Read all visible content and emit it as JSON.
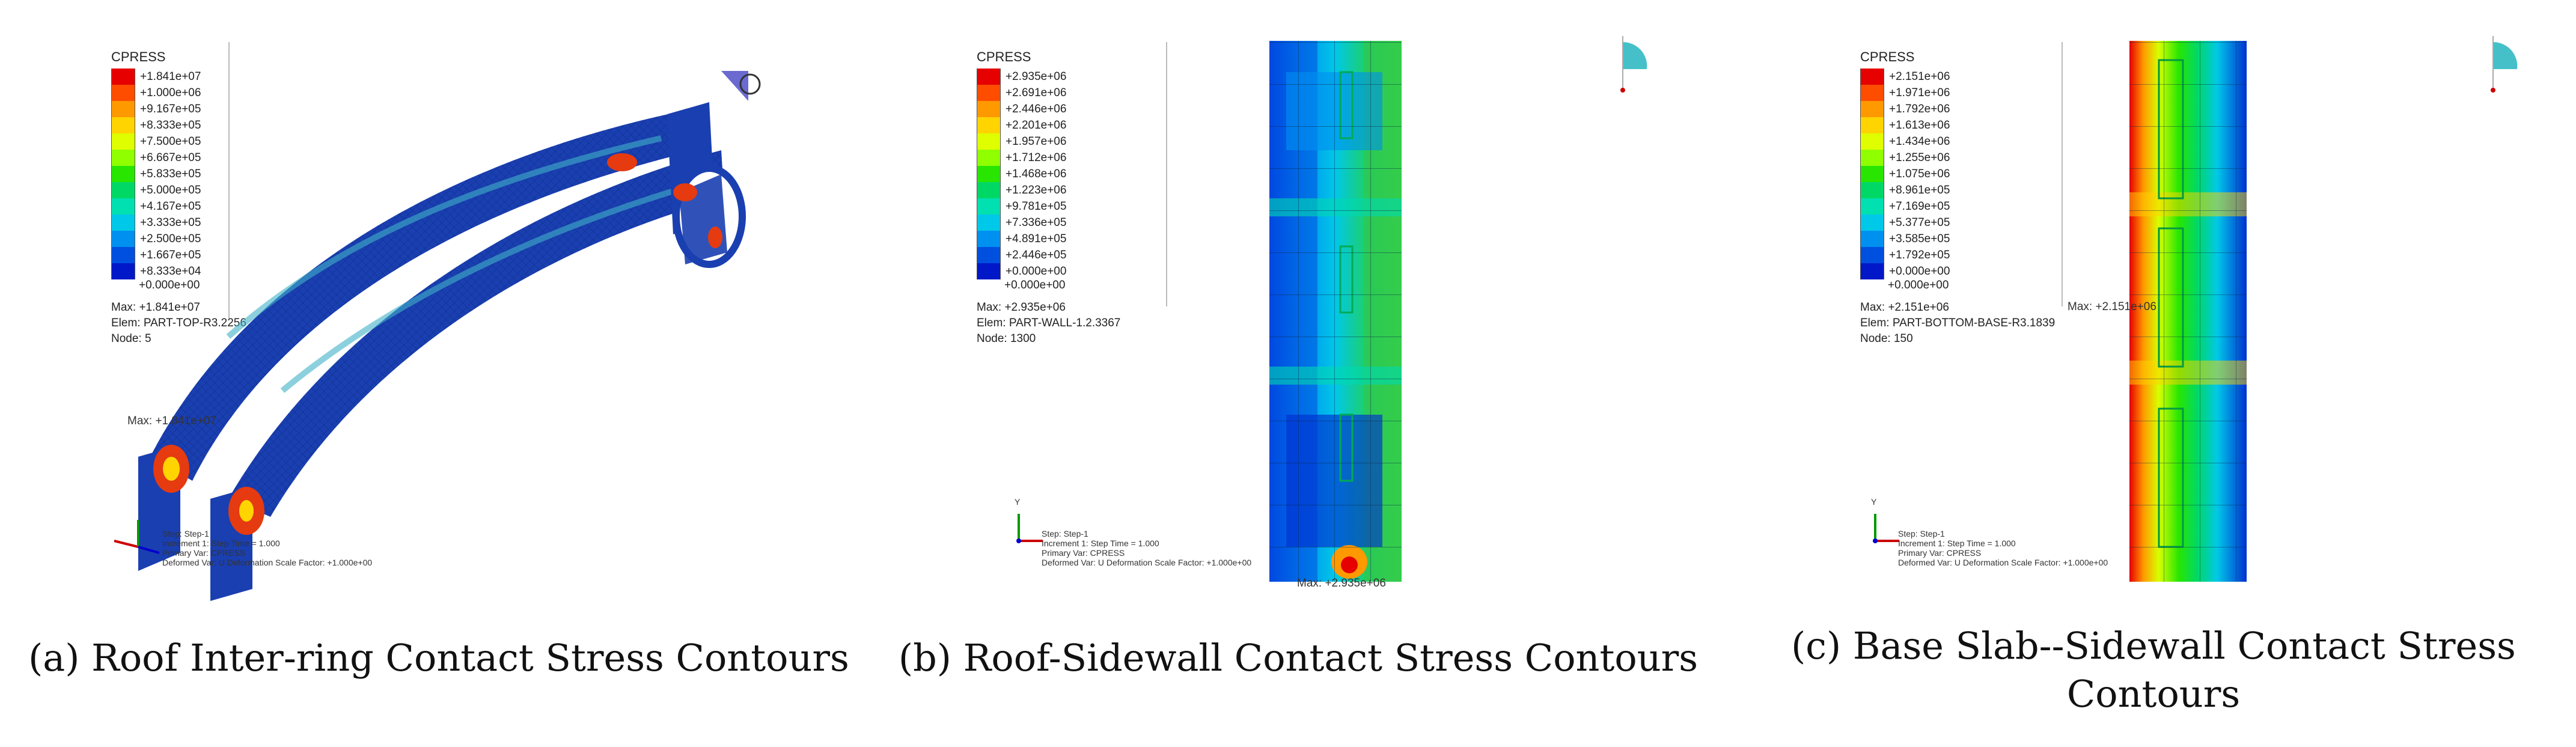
{
  "captions": {
    "a": "(a) Roof Inter-ring Contact Stress Contours",
    "b": "(b) Roof-Sidewall Contact Stress Contours",
    "c_line1": "(c) Base Slab--Sidewall Contact Stress",
    "c_line2": "Contours"
  },
  "legend_colors": [
    "#e60000",
    "#ff4d00",
    "#ff9900",
    "#ffd400",
    "#dfff00",
    "#90ff00",
    "#28e600",
    "#00d866",
    "#00e0b0",
    "#00c8e8",
    "#0090f0",
    "#0050e0",
    "#0018c8"
  ],
  "legend_a": {
    "title": "CPRESS",
    "values": [
      "+1.841e+07",
      "+1.000e+06",
      "+9.167e+05",
      "+8.333e+05",
      "+7.500e+05",
      "+6.667e+05",
      "+5.833e+05",
      "+5.000e+05",
      "+4.167e+05",
      "+3.333e+05",
      "+2.500e+05",
      "+1.667e+05",
      "+8.333e+04",
      "+0.000e+00"
    ],
    "max_line": "Max: +1.841e+07",
    "elem_line": "Elem: PART-TOP-R3.2256",
    "node_line": "Node: 5"
  },
  "legend_b": {
    "title": "CPRESS",
    "values": [
      "+2.935e+06",
      "+2.691e+06",
      "+2.446e+06",
      "+2.201e+06",
      "+1.957e+06",
      "+1.712e+06",
      "+1.468e+06",
      "+1.223e+06",
      "+9.781e+05",
      "+7.336e+05",
      "+4.891e+05",
      "+2.446e+05",
      "+0.000e+00",
      "+0.000e+00"
    ],
    "max_line": "Max: +2.935e+06",
    "elem_line": "Elem: PART-WALL-1.2.3367",
    "node_line": "Node: 1300"
  },
  "legend_c": {
    "title": "CPRESS",
    "values": [
      "+2.151e+06",
      "+1.971e+06",
      "+1.792e+06",
      "+1.613e+06",
      "+1.434e+06",
      "+1.255e+06",
      "+1.075e+06",
      "+8.961e+05",
      "+7.169e+05",
      "+5.377e+05",
      "+3.585e+05",
      "+1.792e+05",
      "+0.000e+00",
      "+0.000e+00"
    ],
    "max_line": "Max: +2.151e+06",
    "elem_line": "Elem: PART-BOTTOM-BASE-R3.1839",
    "node_line": "Node: 150"
  },
  "step_info": {
    "line1": "Step: Step-1",
    "line2": "Increment    1: Step Time =    1.000",
    "line3": "Primary Var: CPRESS",
    "line4": "Deformed Var: U   Deformation Scale Factor: +1.000e+00"
  },
  "max_tags": {
    "a": "Max: +1.841e+07",
    "b": "Max: +2.935e+06",
    "c": "Max: +2.151e+06"
  },
  "axes": {
    "x": "X",
    "y": "Y",
    "z": "Z"
  }
}
